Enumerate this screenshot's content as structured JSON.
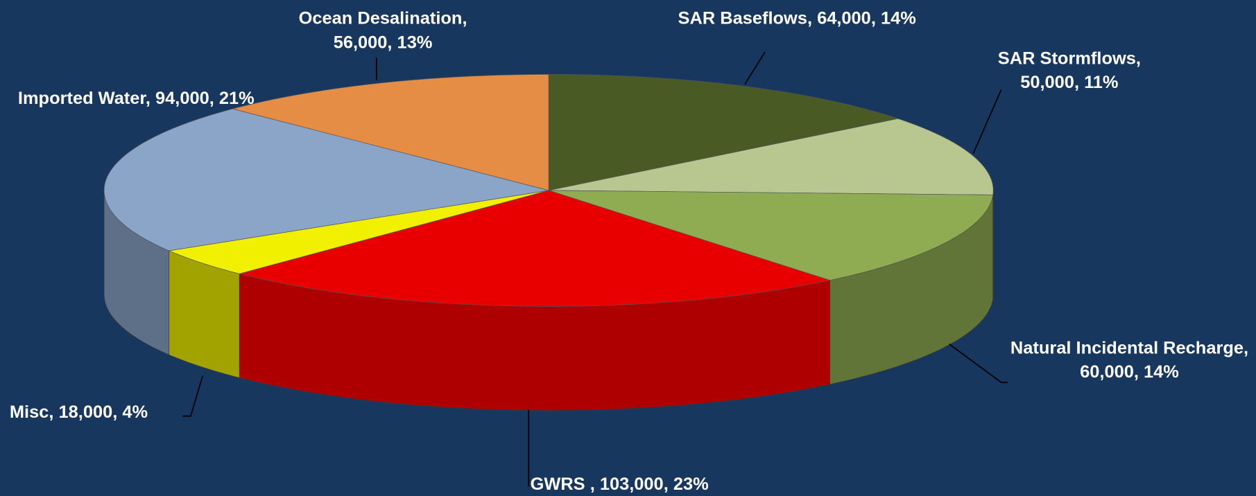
{
  "chart_data": {
    "type": "pie3d",
    "categories": [
      "SAR Baseflows",
      "SAR Stormflows",
      "Natural Incidental Recharge",
      "GWRS ",
      "Misc",
      "Imported Water",
      "Ocean Desalination"
    ],
    "values": [
      64000,
      50000,
      60000,
      103000,
      18000,
      94000,
      56000
    ],
    "value_labels": [
      "64,000",
      "50,000",
      "60,000",
      "103,000",
      "18,000",
      "94,000",
      "56,000"
    ],
    "percent_labels": [
      "14%",
      "11%",
      "14%",
      "23%",
      "4%",
      "21%",
      "13%"
    ],
    "label_separator": ", ",
    "colors": [
      "#4a5a24",
      "#b8c790",
      "#8fac52",
      "#e80000",
      "#f0f000",
      "#8aa5c8",
      "#e58c45"
    ],
    "background": "#17375e"
  }
}
